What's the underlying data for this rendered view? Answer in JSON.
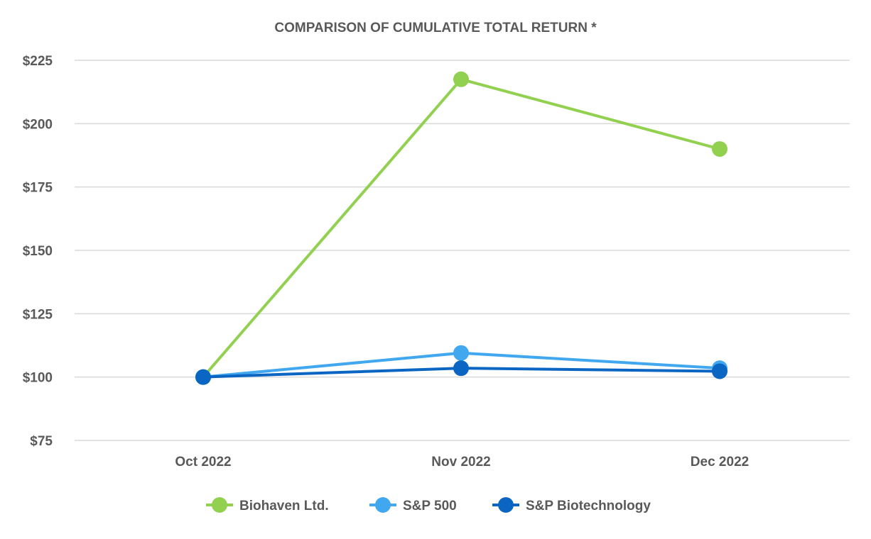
{
  "chart_data": {
    "type": "line",
    "title": "COMPARISON OF CUMULATIVE TOTAL RETURN *",
    "xlabel": "",
    "ylabel": "",
    "categories": [
      "Oct 2022",
      "Nov 2022",
      "Dec 2022"
    ],
    "ylim": [
      75,
      225
    ],
    "yticks": [
      75,
      100,
      125,
      150,
      175,
      200,
      225
    ],
    "ytick_labels": [
      "$75",
      "$100",
      "$125",
      "$150",
      "$175",
      "$200",
      "$225"
    ],
    "grid": true,
    "legend_position": "bottom",
    "series": [
      {
        "name": "Biohaven Ltd.",
        "values": [
          100,
          217.5,
          190
        ],
        "color": "#92D050"
      },
      {
        "name": "S&P 500",
        "values": [
          100,
          109.5,
          103.5
        ],
        "color": "#41A8F0"
      },
      {
        "name": "S&P Biotechnology",
        "values": [
          100,
          103.5,
          102.3
        ],
        "color": "#0A66C2"
      }
    ]
  }
}
